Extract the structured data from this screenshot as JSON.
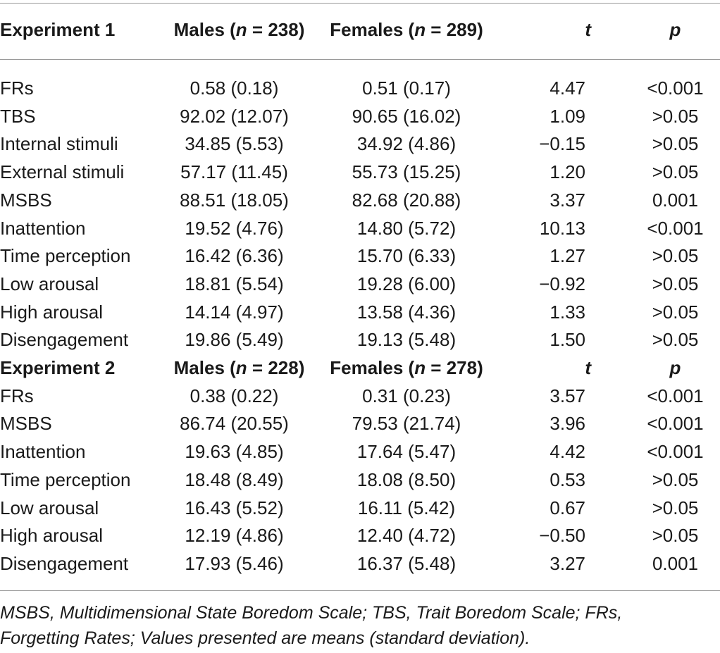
{
  "experiment1": {
    "header": {
      "label": "Experiment 1",
      "males_prefix": "Males (",
      "males_n_symbol": "n",
      "males_n_value": " = 238)",
      "females_prefix": "Females (",
      "females_n_symbol": "n",
      "females_n_value": " = 289)",
      "t": "t",
      "p": "p"
    },
    "rows": [
      {
        "label": "FRs",
        "males": "0.58 (0.18)",
        "females": "0.51 (0.17)",
        "t": "4.47",
        "p": "<0.001"
      },
      {
        "label": "TBS",
        "males": "92.02 (12.07)",
        "females": "90.65 (16.02)",
        "t": "1.09",
        "p": ">0.05"
      },
      {
        "label": "Internal stimuli",
        "males": "34.85 (5.53)",
        "females": "34.92 (4.86)",
        "t": "−0.15",
        "p": ">0.05"
      },
      {
        "label": "External stimuli",
        "males": "57.17 (11.45)",
        "females": "55.73 (15.25)",
        "t": "1.20",
        "p": ">0.05"
      },
      {
        "label": "MSBS",
        "males": "88.51 (18.05)",
        "females": "82.68 (20.88)",
        "t": "3.37",
        "p": "0.001"
      },
      {
        "label": "Inattention",
        "males": "19.52 (4.76)",
        "females": "14.80 (5.72)",
        "t": "10.13",
        "p": "<0.001"
      },
      {
        "label": "Time perception",
        "males": "16.42 (6.36)",
        "females": "15.70 (6.33)",
        "t": "1.27",
        "p": ">0.05"
      },
      {
        "label": "Low arousal",
        "males": "18.81 (5.54)",
        "females": "19.28 (6.00)",
        "t": "−0.92",
        "p": ">0.05"
      },
      {
        "label": "High arousal",
        "males": "14.14 (4.97)",
        "females": "13.58 (4.36)",
        "t": "1.33",
        "p": ">0.05"
      },
      {
        "label": "Disengagement",
        "males": "19.86 (5.49)",
        "females": "19.13 (5.48)",
        "t": "1.50",
        "p": ">0.05"
      }
    ]
  },
  "experiment2": {
    "header": {
      "label": "Experiment 2",
      "males_prefix": "Males (",
      "males_n_symbol": "n",
      "males_n_value": " = 228)",
      "females_prefix": "Females (",
      "females_n_symbol": "n",
      "females_n_value": " = 278)",
      "t": "t",
      "p": "p"
    },
    "rows": [
      {
        "label": "FRs",
        "males": "0.38 (0.22)",
        "females": "0.31 (0.23)",
        "t": "3.57",
        "p": "<0.001"
      },
      {
        "label": "MSBS",
        "males": "86.74 (20.55)",
        "females": "79.53 (21.74)",
        "t": "3.96",
        "p": "<0.001"
      },
      {
        "label": "Inattention",
        "males": "19.63 (4.85)",
        "females": "17.64 (5.47)",
        "t": "4.42",
        "p": "<0.001"
      },
      {
        "label": "Time perception",
        "males": "18.48 (8.49)",
        "females": "18.08 (8.50)",
        "t": "0.53",
        "p": ">0.05"
      },
      {
        "label": "Low arousal",
        "males": "16.43 (5.52)",
        "females": "16.11 (5.42)",
        "t": "0.67",
        "p": ">0.05"
      },
      {
        "label": "High arousal",
        "males": "12.19 (4.86)",
        "females": "12.40 (4.72)",
        "t": "−0.50",
        "p": ">0.05"
      },
      {
        "label": "Disengagement",
        "males": "17.93 (5.46)",
        "females": "16.37 (5.48)",
        "t": "3.27",
        "p": "0.001"
      }
    ]
  },
  "footnote": {
    "line1": "MSBS, Multidimensional State Boredom Scale; TBS, Trait Boredom Scale; FRs,",
    "line2": "Forgetting Rates; Values presented are means (standard deviation)."
  }
}
